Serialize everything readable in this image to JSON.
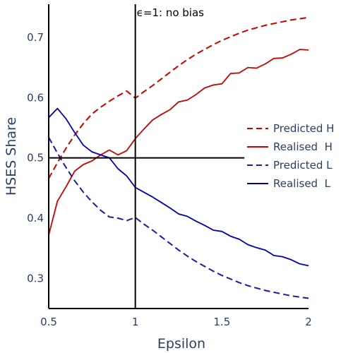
{
  "chart_data": {
    "type": "line",
    "title": "",
    "xlabel": "Epsilon",
    "ylabel": "HSES Share",
    "xlim": [
      0.5,
      2.0
    ],
    "ylim": [
      0.25,
      0.755
    ],
    "xticks": [
      "0.5",
      "1",
      "1.5",
      "2"
    ],
    "xtick_values": [
      0.5,
      1.0,
      1.5,
      2.0
    ],
    "yticks": [
      "0.3",
      "0.4",
      "0.5",
      "0.6",
      "0.7"
    ],
    "ytick_values": [
      0.3,
      0.4,
      0.5,
      0.6,
      0.7
    ],
    "grid": false,
    "legend_position": "right",
    "annotations": [
      {
        "text": "ϵ=1: no bias",
        "x": 1.0,
        "y": 0.755
      }
    ],
    "reference_lines": [
      {
        "orientation": "vertical",
        "x": 1.0
      },
      {
        "orientation": "horizontal",
        "y": 0.5,
        "x_range": [
          0.5,
          1.63
        ]
      }
    ],
    "x": [
      0.5,
      0.55,
      0.6,
      0.65,
      0.7,
      0.75,
      0.8,
      0.85,
      0.9,
      0.95,
      1.0,
      1.05,
      1.1,
      1.15,
      1.2,
      1.25,
      1.3,
      1.35,
      1.4,
      1.45,
      1.5,
      1.55,
      1.6,
      1.65,
      1.7,
      1.75,
      1.8,
      1.85,
      1.9,
      1.95,
      2.0
    ],
    "series": [
      {
        "name": "Predicted H",
        "color": "#cc0000",
        "dash": "dash",
        "values": [
          0.466,
          0.492,
          0.516,
          0.538,
          0.557,
          0.573,
          0.584,
          0.594,
          0.603,
          0.611,
          0.599,
          0.61,
          0.62,
          0.631,
          0.642,
          0.653,
          0.663,
          0.672,
          0.68,
          0.688,
          0.695,
          0.701,
          0.707,
          0.712,
          0.716,
          0.72,
          0.723,
          0.726,
          0.729,
          0.731,
          0.733
        ]
      },
      {
        "name": "Realised  H",
        "color": "#cc0000",
        "dash": "solid",
        "values": [
          0.372,
          0.428,
          0.452,
          0.478,
          0.489,
          0.495,
          0.505,
          0.513,
          0.505,
          0.512,
          0.532,
          0.548,
          0.563,
          0.572,
          0.58,
          0.593,
          0.596,
          0.605,
          0.616,
          0.621,
          0.623,
          0.64,
          0.641,
          0.65,
          0.649,
          0.656,
          0.665,
          0.666,
          0.672,
          0.68,
          0.679
        ]
      },
      {
        "name": "Predicted L",
        "color": "#1a1aa6",
        "dash": "dash",
        "values": [
          0.534,
          0.508,
          0.484,
          0.462,
          0.443,
          0.427,
          0.413,
          0.402,
          0.4,
          0.396,
          0.401,
          0.39,
          0.38,
          0.369,
          0.358,
          0.347,
          0.337,
          0.328,
          0.32,
          0.312,
          0.305,
          0.299,
          0.293,
          0.288,
          0.284,
          0.28,
          0.277,
          0.274,
          0.271,
          0.269,
          0.267
        ]
      },
      {
        "name": "Realised  L",
        "color": "#0000b3",
        "dash": "solid",
        "values": [
          0.567,
          0.582,
          0.565,
          0.542,
          0.521,
          0.51,
          0.505,
          0.5,
          0.482,
          0.47,
          0.451,
          0.443,
          0.435,
          0.426,
          0.417,
          0.407,
          0.403,
          0.395,
          0.388,
          0.38,
          0.378,
          0.37,
          0.365,
          0.356,
          0.351,
          0.347,
          0.338,
          0.336,
          0.331,
          0.324,
          0.321
        ]
      }
    ]
  }
}
